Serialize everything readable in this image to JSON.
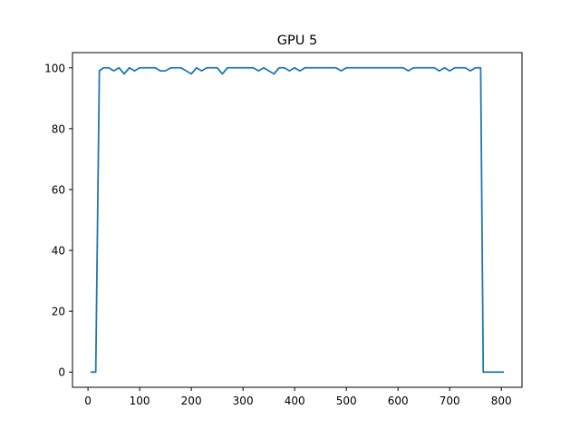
{
  "chart_data": {
    "type": "line",
    "title": "GPU 5",
    "xlabel": "",
    "ylabel": "",
    "xlim": [
      -30,
      840
    ],
    "ylim": [
      -5,
      105
    ],
    "x_ticks": [
      0,
      100,
      200,
      300,
      400,
      500,
      600,
      700,
      800
    ],
    "y_ticks": [
      0,
      20,
      40,
      60,
      80,
      100
    ],
    "grid": false,
    "series": [
      {
        "color": "#1f77b4",
        "x": [
          5,
          15,
          22,
          30,
          40,
          50,
          60,
          70,
          80,
          90,
          100,
          110,
          120,
          130,
          140,
          150,
          160,
          170,
          180,
          190,
          200,
          210,
          220,
          230,
          240,
          250,
          260,
          270,
          280,
          290,
          300,
          310,
          320,
          330,
          340,
          350,
          360,
          370,
          380,
          390,
          400,
          410,
          420,
          430,
          440,
          450,
          460,
          470,
          480,
          490,
          500,
          510,
          520,
          530,
          540,
          550,
          560,
          570,
          580,
          590,
          600,
          610,
          620,
          630,
          640,
          650,
          660,
          670,
          680,
          690,
          700,
          710,
          720,
          730,
          740,
          750,
          760,
          765,
          775,
          785,
          795,
          805
        ],
        "y": [
          0,
          0,
          99,
          100,
          100,
          99,
          100,
          98,
          100,
          99,
          100,
          100,
          100,
          100,
          99,
          99,
          100,
          100,
          100,
          99,
          98,
          100,
          99,
          100,
          100,
          100,
          98,
          100,
          100,
          100,
          100,
          100,
          100,
          99,
          100,
          99,
          98,
          100,
          100,
          99,
          100,
          99,
          100,
          100,
          100,
          100,
          100,
          100,
          100,
          99,
          100,
          100,
          100,
          100,
          100,
          100,
          100,
          100,
          100,
          100,
          100,
          100,
          99,
          100,
          100,
          100,
          100,
          100,
          99,
          100,
          99,
          100,
          100,
          100,
          99,
          100,
          100,
          0,
          0,
          0,
          0,
          0
        ]
      }
    ]
  }
}
